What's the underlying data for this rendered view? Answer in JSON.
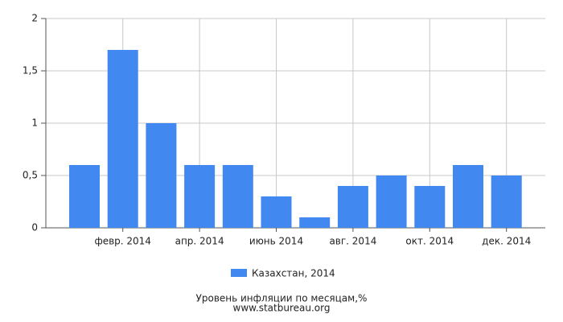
{
  "chart_data": {
    "type": "bar",
    "title": "Уровень инфляции по месяцам,%",
    "subtitle": "www.statbureau.org",
    "categories": [
      null,
      "февр. 2014",
      null,
      "апр. 2014",
      null,
      "июнь 2014",
      null,
      "авг. 2014",
      null,
      "окт. 2014",
      null,
      "дек. 2014"
    ],
    "series": [
      {
        "name": "Казахстан, 2014",
        "color": "#4189f0",
        "values": [
          0.6,
          1.7,
          1.0,
          0.6,
          0.6,
          0.3,
          0.1,
          0.4,
          0.5,
          0.4,
          0.6,
          0.5
        ]
      }
    ],
    "ylim": [
      0,
      2
    ],
    "yticks": [
      0,
      {
        "value": 0.5,
        "label": "0,5"
      },
      1,
      {
        "value": 1.5,
        "label": "1,5"
      },
      2
    ],
    "grid": true
  }
}
